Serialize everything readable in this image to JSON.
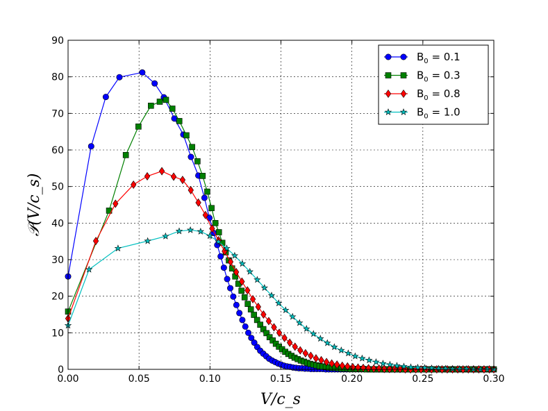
{
  "chart_data": {
    "type": "line",
    "title": "",
    "xlabel": "V/c_s",
    "ylabel": "𝒫(V/c_s)",
    "xlim": [
      0.0,
      0.3
    ],
    "ylim": [
      0,
      90
    ],
    "xticks": [
      "0.00",
      "0.05",
      "0.10",
      "0.15",
      "0.20",
      "0.25",
      "0.30"
    ],
    "yticks": [
      "0",
      "10",
      "20",
      "30",
      "40",
      "50",
      "60",
      "70",
      "80",
      "90"
    ],
    "grid": true,
    "legend_position": "top-right",
    "series": [
      {
        "name": "B₀ = 0.1",
        "label_main": "B",
        "label_sub": "0",
        "label_value": " = 0.1",
        "color": "#0000ff",
        "marker": "circle",
        "x": [
          0.0,
          0.0163,
          0.0266,
          0.0362,
          0.0523,
          0.061,
          0.0675,
          0.0749,
          0.0812,
          0.0866,
          0.0918,
          0.0961,
          0.0996,
          0.1026,
          0.1051,
          0.1075,
          0.1098,
          0.1121,
          0.1143,
          0.1164,
          0.1186,
          0.1207,
          0.1228,
          0.1249,
          0.127,
          0.1291,
          0.1312,
          0.1333,
          0.1354,
          0.1375,
          0.1396,
          0.1417,
          0.1438,
          0.1459,
          0.148,
          0.1501,
          0.1522,
          0.1543,
          0.1564,
          0.1585,
          0.1606,
          0.1627,
          0.1648,
          0.1669,
          0.169,
          0.1711,
          0.1732,
          0.1753,
          0.1774,
          0.1795,
          0.1816,
          0.1837,
          0.1858,
          0.1879,
          0.19,
          0.1921,
          0.1942,
          0.1963,
          0.1984,
          0.2005,
          0.2026,
          0.2047,
          0.2068,
          0.2089,
          0.211,
          0.2131,
          0.2152,
          0.2173,
          0.2194,
          0.2215,
          0.2236,
          0.2257,
          0.2278,
          0.2299,
          0.232,
          0.2341,
          0.2362,
          0.2383,
          0.2404,
          0.2425,
          0.2446,
          0.2467,
          0.2488,
          0.2509,
          0.253,
          0.2551,
          0.2572,
          0.2593,
          0.2614,
          0.2635,
          0.2656,
          0.2677,
          0.2698,
          0.2719,
          0.274,
          0.2761,
          0.2782,
          0.2803,
          0.2824,
          0.2845,
          0.2866,
          0.2887,
          0.2908,
          0.2929,
          0.295,
          0.2971,
          0.3
        ],
        "y": [
          25.4,
          61.0,
          74.5,
          79.9,
          81.2,
          78.2,
          74.4,
          68.6,
          64.2,
          58.1,
          53.0,
          46.9,
          41.4,
          37.3,
          34.0,
          30.9,
          27.8,
          24.7,
          22.2,
          19.9,
          17.6,
          15.4,
          13.5,
          11.7,
          10.0,
          8.6,
          7.3,
          6.1,
          5.1,
          4.3,
          3.6,
          2.9,
          2.4,
          2.0,
          1.6,
          1.3,
          1.0,
          0.8,
          0.7,
          0.5,
          0.4,
          0.3,
          0.3,
          0.2,
          0.2,
          0.1,
          0.1,
          0.1,
          0.1,
          0.1,
          0.0,
          0.0,
          0.0,
          0.0,
          0.0,
          0.0,
          0.0,
          0.0,
          0.0,
          0.0,
          0.0,
          0.0,
          0.0,
          0.0,
          0.0,
          0.0,
          0.0,
          0.0,
          0.0,
          0.0,
          0.0,
          0.0,
          0.0,
          0.0,
          0.0,
          0.0,
          0.0,
          0.0,
          0.0,
          0.0,
          0.0,
          0.0,
          0.0,
          0.0,
          0.0,
          0.0,
          0.0,
          0.0,
          0.0,
          0.0,
          0.0,
          0.0,
          0.0,
          0.0,
          0.0,
          0.0,
          0.0,
          0.0,
          0.0,
          0.0,
          0.0,
          0.0,
          0.0,
          0.0,
          0.0,
          0.0,
          0.0
        ]
      },
      {
        "name": "B₀ = 0.3",
        "label_main": "B",
        "label_sub": "0",
        "label_value": " = 0.3",
        "color": "#008000",
        "marker": "square",
        "x": [
          0.0,
          0.0289,
          0.0407,
          0.0496,
          0.0584,
          0.0646,
          0.069,
          0.0735,
          0.0784,
          0.0834,
          0.0874,
          0.0912,
          0.0948,
          0.0981,
          0.1011,
          0.1038,
          0.1063,
          0.1087,
          0.1111,
          0.1133,
          0.1156,
          0.1178,
          0.12,
          0.1222,
          0.1244,
          0.1266,
          0.1288,
          0.131,
          0.1332,
          0.1354,
          0.1376,
          0.1398,
          0.142,
          0.1442,
          0.1464,
          0.1486,
          0.1508,
          0.153,
          0.1552,
          0.1574,
          0.1596,
          0.1618,
          0.164,
          0.1662,
          0.1684,
          0.1706,
          0.1728,
          0.175,
          0.1772,
          0.1794,
          0.1816,
          0.1838,
          0.186,
          0.1882,
          0.1904,
          0.1926,
          0.1948,
          0.197,
          0.1992,
          0.2014,
          0.2036,
          0.2058,
          0.208,
          0.2102,
          0.2124,
          0.2146,
          0.2168,
          0.219,
          0.2212,
          0.2234,
          0.2256,
          0.2278,
          0.23,
          0.2322,
          0.2344,
          0.2366,
          0.2388,
          0.241,
          0.2432,
          0.2454,
          0.2476,
          0.2498,
          0.252,
          0.2542,
          0.2564,
          0.2586,
          0.2608,
          0.263,
          0.2652,
          0.2674,
          0.2696,
          0.2718,
          0.274,
          0.2762,
          0.2784,
          0.2806,
          0.2828,
          0.285,
          0.2872,
          0.2894,
          0.2916,
          0.2938,
          0.296,
          0.2982,
          0.3
        ],
        "y": [
          15.8,
          43.4,
          58.6,
          66.4,
          72.1,
          73.2,
          73.7,
          71.3,
          67.9,
          64.0,
          60.8,
          56.9,
          52.9,
          48.6,
          44.1,
          40.0,
          37.5,
          34.6,
          32.0,
          29.8,
          27.6,
          25.4,
          23.4,
          21.5,
          19.7,
          17.9,
          16.4,
          14.9,
          13.5,
          12.2,
          11.0,
          9.9,
          8.8,
          7.9,
          7.0,
          6.2,
          5.5,
          4.8,
          4.2,
          3.7,
          3.2,
          2.8,
          2.4,
          2.1,
          1.8,
          1.5,
          1.3,
          1.1,
          0.9,
          0.8,
          0.6,
          0.5,
          0.4,
          0.4,
          0.3,
          0.2,
          0.2,
          0.2,
          0.1,
          0.1,
          0.1,
          0.1,
          0.1,
          0.0,
          0.0,
          0.0,
          0.0,
          0.0,
          0.0,
          0.0,
          0.0,
          0.0,
          0.0,
          0.0,
          0.0,
          0.0,
          0.0,
          0.0,
          0.0,
          0.0,
          0.0,
          0.0,
          0.0,
          0.0,
          0.0,
          0.0,
          0.0,
          0.0,
          0.0,
          0.0,
          0.0,
          0.0,
          0.0,
          0.0,
          0.0,
          0.0,
          0.0,
          0.0,
          0.0,
          0.0,
          0.0,
          0.0,
          0.0,
          0.0,
          0.0
        ]
      },
      {
        "name": "B₀ = 0.8",
        "label_main": "B",
        "label_sub": "0",
        "label_value": " = 0.8",
        "color": "#ff0000",
        "marker": "diamond",
        "x": [
          0.0,
          0.0196,
          0.0334,
          0.0461,
          0.0558,
          0.0661,
          0.0744,
          0.0807,
          0.0865,
          0.0918,
          0.0968,
          0.1015,
          0.106,
          0.1103,
          0.1145,
          0.1185,
          0.1225,
          0.1264,
          0.1302,
          0.134,
          0.1377,
          0.1414,
          0.1451,
          0.1488,
          0.1525,
          0.1562,
          0.1599,
          0.1636,
          0.1673,
          0.171,
          0.1747,
          0.1784,
          0.1821,
          0.1858,
          0.1895,
          0.1932,
          0.1969,
          0.2006,
          0.2043,
          0.208,
          0.2117,
          0.2154,
          0.2191,
          0.2228,
          0.2265,
          0.2302,
          0.2339,
          0.2376,
          0.2413,
          0.245,
          0.2487,
          0.2524,
          0.2561,
          0.2598,
          0.2635,
          0.2672,
          0.2709,
          0.2746,
          0.2783,
          0.282,
          0.2857,
          0.2894,
          0.2931,
          0.2968,
          0.3
        ],
        "y": [
          13.9,
          35.1,
          45.3,
          50.5,
          52.8,
          54.2,
          52.7,
          51.8,
          49.0,
          45.6,
          42.2,
          38.5,
          35.3,
          32.3,
          29.4,
          26.6,
          24.0,
          21.6,
          19.2,
          17.1,
          15.0,
          13.2,
          11.5,
          10.0,
          8.6,
          7.3,
          6.2,
          5.2,
          4.4,
          3.7,
          3.0,
          2.5,
          2.0,
          1.6,
          1.3,
          1.0,
          0.8,
          0.6,
          0.5,
          0.4,
          0.3,
          0.2,
          0.2,
          0.1,
          0.1,
          0.1,
          0.1,
          0.0,
          0.0,
          0.0,
          0.0,
          0.0,
          0.0,
          0.0,
          0.0,
          0.0,
          0.0,
          0.0,
          0.0,
          0.0,
          0.0,
          0.0,
          0.0,
          0.0,
          0.0
        ]
      },
      {
        "name": "B₀ = 1.0",
        "label_main": "B",
        "label_sub": "0",
        "label_value": " = 1.0",
        "color": "#00bfbf",
        "marker": "star",
        "x": [
          0.0,
          0.0148,
          0.0352,
          0.0561,
          0.0687,
          0.0783,
          0.0862,
          0.0934,
          0.0999,
          0.106,
          0.1118,
          0.1174,
          0.1228,
          0.1281,
          0.1333,
          0.1384,
          0.1434,
          0.1484,
          0.1533,
          0.1582,
          0.1631,
          0.168,
          0.1729,
          0.1778,
          0.1827,
          0.1876,
          0.1925,
          0.1974,
          0.2023,
          0.2072,
          0.2121,
          0.217,
          0.2219,
          0.2268,
          0.2317,
          0.2366,
          0.2415,
          0.2464,
          0.2513,
          0.2562,
          0.2611,
          0.266,
          0.2709,
          0.2758,
          0.2807,
          0.2856,
          0.2905,
          0.2954,
          0.3
        ],
        "y": [
          12.0,
          27.3,
          33.1,
          35.1,
          36.4,
          37.8,
          38.1,
          37.7,
          36.5,
          34.9,
          33.1,
          31.1,
          28.9,
          26.7,
          24.5,
          22.3,
          20.2,
          18.1,
          16.2,
          14.4,
          12.7,
          11.1,
          9.7,
          8.4,
          7.2,
          6.1,
          5.2,
          4.4,
          3.6,
          3.0,
          2.5,
          2.0,
          1.6,
          1.3,
          1.0,
          0.8,
          0.6,
          0.5,
          0.4,
          0.3,
          0.2,
          0.2,
          0.1,
          0.1,
          0.1,
          0.0,
          0.0,
          0.0,
          0.0
        ]
      }
    ]
  }
}
